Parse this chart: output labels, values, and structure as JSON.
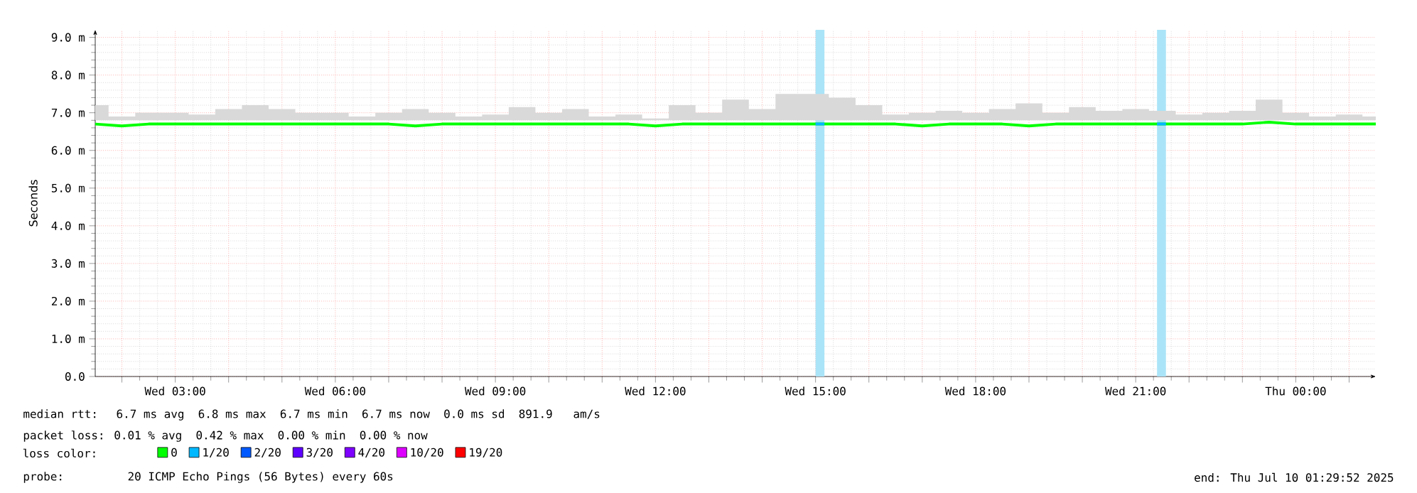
{
  "chart_data": {
    "type": "line",
    "ylabel": "Seconds",
    "x": [
      "2025-07-09T01:30",
      "2025-07-09T02:00",
      "2025-07-09T02:30",
      "2025-07-09T03:00",
      "2025-07-09T03:30",
      "2025-07-09T04:00",
      "2025-07-09T04:30",
      "2025-07-09T05:00",
      "2025-07-09T05:30",
      "2025-07-09T06:00",
      "2025-07-09T06:30",
      "2025-07-09T07:00",
      "2025-07-09T07:30",
      "2025-07-09T08:00",
      "2025-07-09T08:30",
      "2025-07-09T09:00",
      "2025-07-09T09:30",
      "2025-07-09T10:00",
      "2025-07-09T10:30",
      "2025-07-09T11:00",
      "2025-07-09T11:30",
      "2025-07-09T12:00",
      "2025-07-09T12:30",
      "2025-07-09T13:00",
      "2025-07-09T13:30",
      "2025-07-09T14:00",
      "2025-07-09T14:30",
      "2025-07-09T15:00",
      "2025-07-09T15:30",
      "2025-07-09T16:00",
      "2025-07-09T16:30",
      "2025-07-09T17:00",
      "2025-07-09T17:30",
      "2025-07-09T18:00",
      "2025-07-09T18:30",
      "2025-07-09T19:00",
      "2025-07-09T19:30",
      "2025-07-09T20:00",
      "2025-07-09T20:30",
      "2025-07-09T21:00",
      "2025-07-09T21:30",
      "2025-07-09T22:00",
      "2025-07-09T22:30",
      "2025-07-09T23:00",
      "2025-07-09T23:30",
      "2025-07-10T00:00",
      "2025-07-10T00:30",
      "2025-07-10T01:00",
      "2025-07-10T01:30"
    ],
    "series": [
      {
        "name": "0",
        "color": "#00ff00",
        "values": [
          6.7,
          6.65,
          6.7,
          6.7,
          6.7,
          6.7,
          6.7,
          6.7,
          6.7,
          6.7,
          6.7,
          6.7,
          6.65,
          6.7,
          6.7,
          6.7,
          6.7,
          6.7,
          6.7,
          6.7,
          6.7,
          6.65,
          6.7,
          6.7,
          6.7,
          6.7,
          6.7,
          6.7,
          6.7,
          6.7,
          6.7,
          6.65,
          6.7,
          6.7,
          6.7,
          6.65,
          6.7,
          6.7,
          6.7,
          6.7,
          6.7,
          6.7,
          6.7,
          6.7,
          6.75,
          6.7,
          6.7,
          6.7,
          6.7
        ],
        "upper": [
          7.2,
          6.9,
          7.0,
          7.0,
          6.95,
          7.1,
          7.2,
          7.1,
          7.0,
          7.0,
          6.9,
          7.0,
          7.1,
          7.0,
          6.9,
          6.95,
          7.15,
          7.0,
          7.1,
          6.9,
          6.95,
          6.85,
          7.2,
          7.0,
          7.35,
          7.1,
          7.5,
          7.5,
          7.4,
          7.2,
          6.95,
          7.0,
          7.05,
          7.0,
          7.1,
          7.25,
          7.0,
          7.15,
          7.05,
          7.1,
          7.05,
          6.95,
          7.0,
          7.05,
          7.35,
          7.0,
          6.9,
          6.95,
          6.9
        ],
        "lower": [
          6.8,
          6.8,
          6.8,
          6.8,
          6.8,
          6.8,
          6.8,
          6.8,
          6.8,
          6.8,
          6.8,
          6.8,
          6.8,
          6.8,
          6.8,
          6.8,
          6.8,
          6.8,
          6.8,
          6.8,
          6.8,
          6.8,
          6.8,
          6.8,
          6.8,
          6.8,
          6.8,
          6.8,
          6.8,
          6.8,
          6.8,
          6.8,
          6.8,
          6.8,
          6.8,
          6.8,
          6.8,
          6.8,
          6.8,
          6.8,
          6.8,
          6.8,
          6.8,
          6.8,
          6.8,
          6.8,
          6.8,
          6.8,
          6.8
        ]
      },
      {
        "name": "1/20",
        "color": "#00b8ff",
        "x": [
          "2025-07-09T15:00",
          "2025-07-09T15:10",
          "2025-07-09T18:00",
          "2025-07-09T21:24",
          "2025-07-09T21:34"
        ],
        "values": [
          6.7,
          6.7,
          null,
          6.7,
          6.7
        ]
      },
      {
        "name": "2/20",
        "color": "#0059ff",
        "values": [
          null,
          null,
          null,
          null,
          null,
          null,
          null,
          null,
          null,
          null,
          null,
          null,
          null,
          null,
          null,
          null,
          null,
          null,
          null,
          null,
          null,
          null,
          null,
          null,
          null,
          null,
          null,
          null,
          null,
          null,
          null,
          null,
          null,
          null,
          null,
          null,
          null,
          null,
          null,
          null,
          null,
          null,
          null,
          null,
          null,
          null,
          null,
          null,
          null
        ]
      },
      {
        "name": "3/20",
        "color": "#5e00ff",
        "values": [
          null,
          null,
          null,
          null,
          null,
          null,
          null,
          null,
          null,
          null,
          null,
          null,
          null,
          null,
          null,
          null,
          null,
          null,
          null,
          null,
          null,
          null,
          null,
          null,
          null,
          null,
          null,
          null,
          null,
          null,
          null,
          null,
          null,
          null,
          null,
          null,
          null,
          null,
          null,
          null,
          null,
          null,
          null,
          null,
          null,
          null,
          null,
          null,
          null
        ]
      },
      {
        "name": "4/20",
        "color": "#7e00ff",
        "values": [
          null,
          null,
          null,
          null,
          null,
          null,
          null,
          null,
          null,
          null,
          null,
          null,
          null,
          null,
          null,
          null,
          null,
          null,
          null,
          null,
          null,
          null,
          null,
          null,
          null,
          null,
          null,
          null,
          null,
          null,
          null,
          null,
          null,
          null,
          null,
          null,
          null,
          null,
          null,
          null,
          null,
          null,
          null,
          null,
          null,
          null,
          null,
          null,
          null
        ]
      },
      {
        "name": "10/20",
        "color": "#dd00ff",
        "values": [
          null,
          null,
          null,
          null,
          null,
          null,
          null,
          null,
          null,
          null,
          null,
          null,
          null,
          null,
          null,
          null,
          null,
          null,
          null,
          null,
          null,
          null,
          null,
          null,
          null,
          null,
          null,
          null,
          null,
          null,
          null,
          null,
          null,
          null,
          null,
          null,
          null,
          null,
          null,
          null,
          null,
          null,
          null,
          null,
          null,
          null,
          null,
          null,
          null
        ]
      },
      {
        "name": "19/20",
        "color": "#ff0000",
        "values": [
          null,
          null,
          null,
          null,
          null,
          null,
          null,
          null,
          null,
          null,
          null,
          null,
          null,
          null,
          null,
          null,
          null,
          null,
          null,
          null,
          null,
          null,
          null,
          null,
          null,
          null,
          null,
          null,
          null,
          null,
          null,
          null,
          null,
          null,
          null,
          null,
          null,
          null,
          null,
          null,
          null,
          null,
          null,
          null,
          null,
          null,
          null,
          null,
          null
        ]
      }
    ],
    "legend": "bottom",
    "legend_title": "loss color:",
    "xlim": [
      "2025-07-09T01:30",
      "2025-07-10T01:30"
    ],
    "xticks": [
      {
        "value": "2025-07-09T02:00",
        "label": null
      },
      {
        "value": "2025-07-09T03:00",
        "label": "Wed 03:00"
      },
      {
        "value": "2025-07-09T04:00",
        "label": null
      },
      {
        "value": "2025-07-09T05:00",
        "label": null
      },
      {
        "value": "2025-07-09T06:00",
        "label": "Wed 06:00"
      },
      {
        "value": "2025-07-09T07:00",
        "label": null
      },
      {
        "value": "2025-07-09T08:00",
        "label": null
      },
      {
        "value": "2025-07-09T09:00",
        "label": "Wed 09:00"
      },
      {
        "value": "2025-07-09T10:00",
        "label": null
      },
      {
        "value": "2025-07-09T11:00",
        "label": null
      },
      {
        "value": "2025-07-09T12:00",
        "label": "Wed 12:00"
      },
      {
        "value": "2025-07-09T13:00",
        "label": null
      },
      {
        "value": "2025-07-09T14:00",
        "label": null
      },
      {
        "value": "2025-07-09T15:00",
        "label": "Wed 15:00"
      },
      {
        "value": "2025-07-09T16:00",
        "label": null
      },
      {
        "value": "2025-07-09T17:00",
        "label": null
      },
      {
        "value": "2025-07-09T18:00",
        "label": "Wed 18:00"
      },
      {
        "value": "2025-07-09T19:00",
        "label": null
      },
      {
        "value": "2025-07-09T20:00",
        "label": null
      },
      {
        "value": "2025-07-09T21:00",
        "label": "Wed 21:00"
      },
      {
        "value": "2025-07-09T22:00",
        "label": null
      },
      {
        "value": "2025-07-09T23:00",
        "label": null
      },
      {
        "value": "2025-07-10T00:00",
        "label": "Thu 00:00"
      },
      {
        "value": "2025-07-10T01:00",
        "label": null
      }
    ],
    "ylim": [
      0,
      9.2
    ],
    "yticks": [
      {
        "value": 0,
        "label": "0.0"
      },
      {
        "value": 1,
        "label": "1.0 m"
      },
      {
        "value": 2,
        "label": "2.0 m"
      },
      {
        "value": 3,
        "label": "3.0 m"
      },
      {
        "value": 4,
        "label": "4.0 m"
      },
      {
        "value": 5,
        "label": "5.0 m"
      },
      {
        "value": 6,
        "label": "6.0 m"
      },
      {
        "value": 7,
        "label": "7.0 m"
      },
      {
        "value": 8,
        "label": "8.0 m"
      },
      {
        "value": 9,
        "label": "9.0 m"
      }
    ],
    "grid": true,
    "bands": [
      {
        "axis": "x",
        "from": "2025-07-09T15:00",
        "to": "2025-07-09T15:10",
        "color": "#aae4f8"
      },
      {
        "axis": "x",
        "from": "2025-07-09T21:24",
        "to": "2025-07-09T21:34",
        "color": "#aae4f8"
      }
    ],
    "annotations": [
      "median rtt:  6.7 ms avg  6.8 ms max  6.7 ms min  6.7 ms now  0.0 ms sd  891.9   am/s",
      "packet loss: 0.01 % avg  0.42 % max  0.00 % min  0.00 % now",
      "probe:       20 ICMP Echo Pings (56 Bytes) every 60s",
      "end: Thu Jul 10 01:29:52 2025"
    ]
  }
}
